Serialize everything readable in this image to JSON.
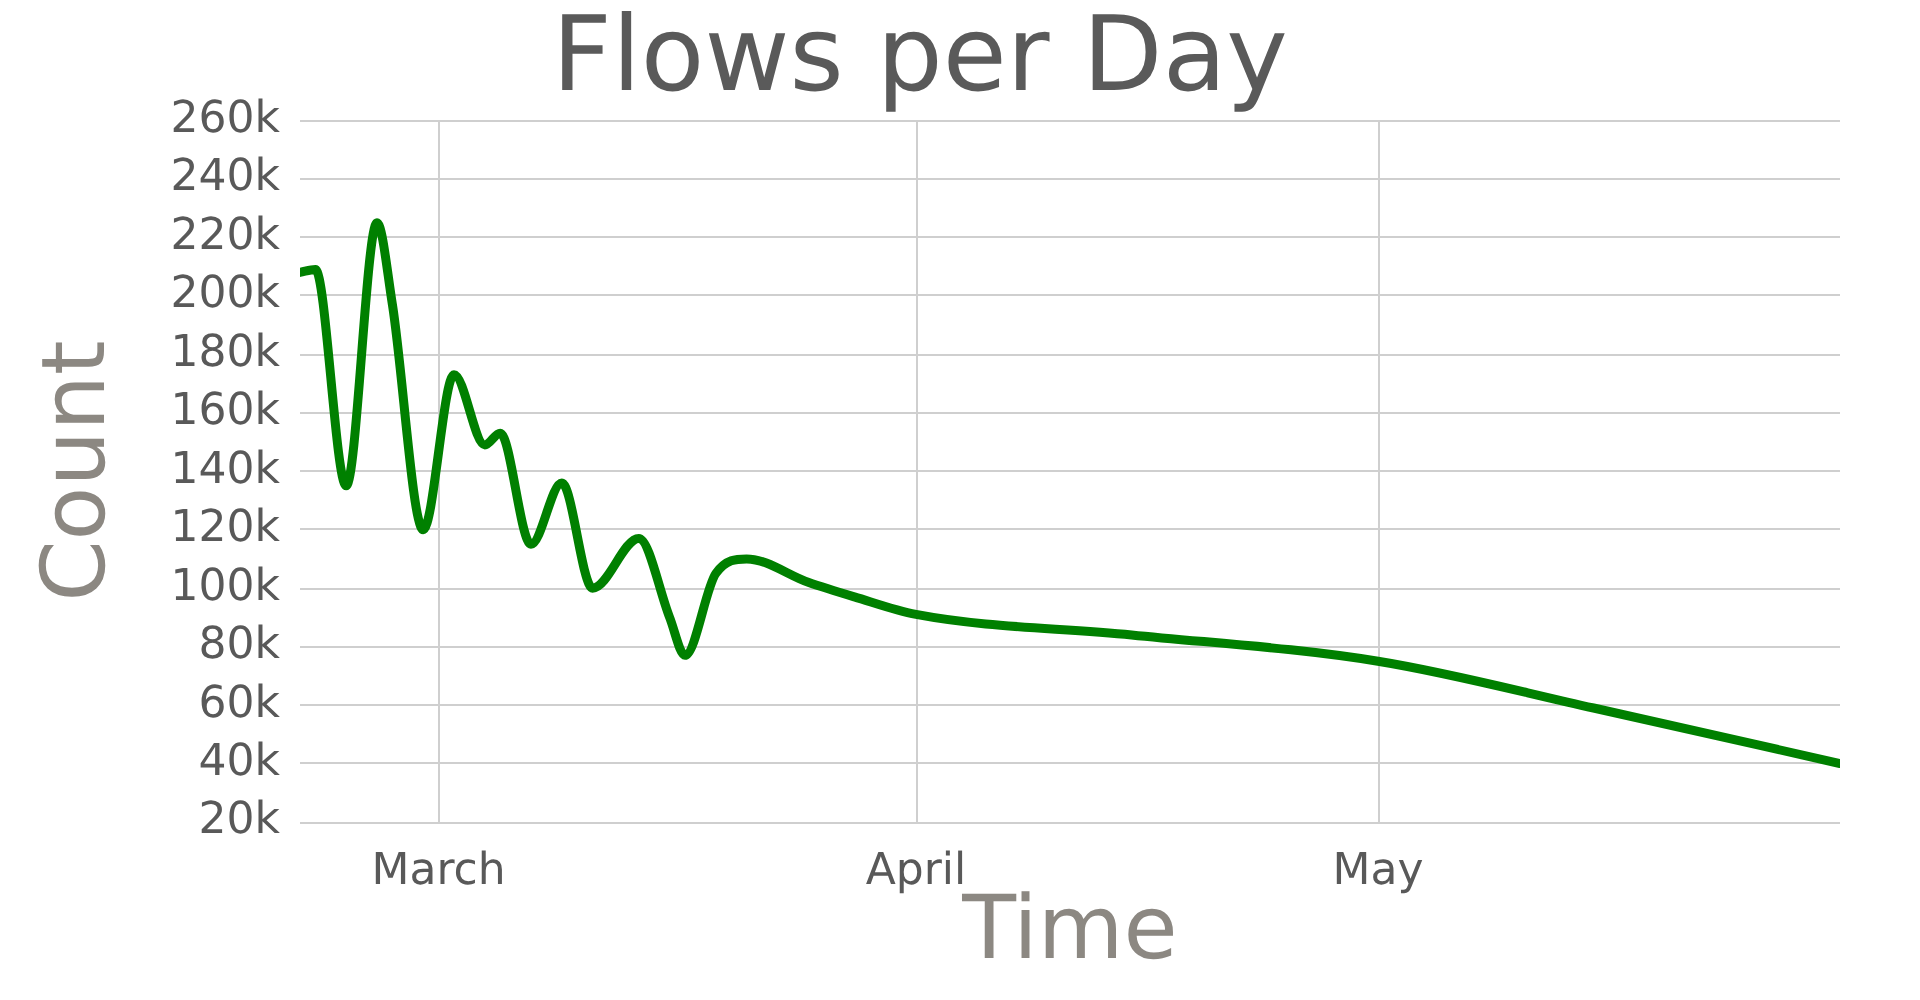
{
  "chart_data": {
    "type": "line",
    "title": "Flows per Day",
    "xlabel": "Time",
    "ylabel": "Count",
    "x": [
      "--02-20",
      "--02-21",
      "--02-23",
      "--02-25",
      "--02-26",
      "--02-28",
      "--03-02",
      "--03-04",
      "--03-05",
      "--03-07",
      "--03-09",
      "--03-11",
      "--03-14",
      "--03-16",
      "--03-17",
      "--03-19",
      "--03-21",
      "--03-25",
      "--03-28",
      "--04-01",
      "--04-15",
      "--05-01",
      "--05-15",
      "--05-31"
    ],
    "series": [
      {
        "color": "#008000",
        "values": [
          208000,
          209000,
          135000,
          225000,
          197000,
          120000,
          173000,
          149000,
          153000,
          115000,
          136000,
          100000,
          117000,
          90000,
          77000,
          105000,
          110000,
          102000,
          97000,
          91000,
          84000,
          75000,
          59000,
          40000
        ]
      }
    ],
    "xlim": [
      "--02-20",
      "--05-31"
    ],
    "xticks": [
      {
        "value": "--03-01",
        "label": "March"
      },
      {
        "value": "--04-01",
        "label": "April"
      },
      {
        "value": "--05-01",
        "label": "May"
      }
    ],
    "ylim": [
      20000,
      260000
    ],
    "yticks": [
      {
        "value": 20000,
        "label": "20k"
      },
      {
        "value": 40000,
        "label": "40k"
      },
      {
        "value": 60000,
        "label": "60k"
      },
      {
        "value": 80000,
        "label": "80k"
      },
      {
        "value": 100000,
        "label": "100k"
      },
      {
        "value": 120000,
        "label": "120k"
      },
      {
        "value": 140000,
        "label": "140k"
      },
      {
        "value": 160000,
        "label": "160k"
      },
      {
        "value": 180000,
        "label": "180k"
      },
      {
        "value": 200000,
        "label": "200k"
      },
      {
        "value": 220000,
        "label": "220k"
      },
      {
        "value": 240000,
        "label": "240k"
      },
      {
        "value": 260000,
        "label": "260k"
      }
    ],
    "grid": true,
    "marker": "none",
    "line_style": "solid"
  }
}
